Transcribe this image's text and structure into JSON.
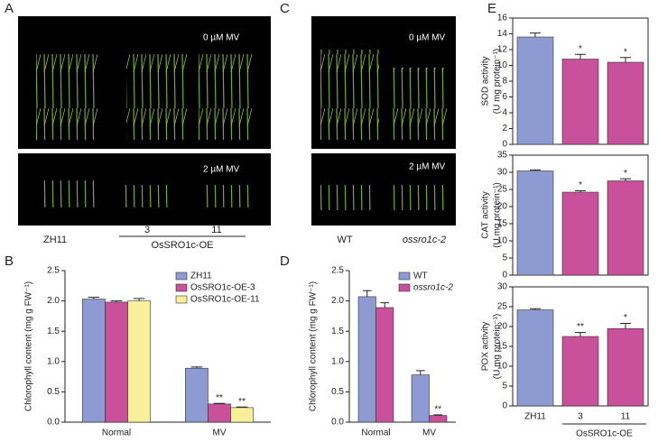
{
  "panel_labels": [
    "A",
    "B",
    "C",
    "D",
    "E"
  ],
  "photos": {
    "a_top_label": "0 µM MV",
    "a_bottom_label": "2 µM MV",
    "a_x_labels": [
      "ZH11",
      "3",
      "11"
    ],
    "a_group_label": "OsSRO1c-OE",
    "c_top_label": "0 µM MV",
    "c_bottom_label": "2 µM MV",
    "c_x_labels": [
      "WT",
      "ossro1c-2"
    ]
  },
  "chart_data": [
    {
      "type": "bar",
      "y_label": [
        "Chlorophyll content (mg g FW⁻¹)"
      ],
      "categories": [
        "Normal",
        "MV"
      ],
      "series": [
        {
          "name": "ZH11",
          "color": "#8e9bd3",
          "values": [
            2.03,
            0.89
          ],
          "errors": [
            0.03,
            0.02
          ],
          "significance": [
            null,
            null
          ]
        },
        {
          "name": "OsSRO1c-OE-3",
          "color": "#c9509b",
          "values": [
            1.98,
            0.3
          ],
          "errors": [
            0.02,
            0.01
          ],
          "significance": [
            null,
            "**"
          ]
        },
        {
          "name": "OsSRO1c-OE-11",
          "color": "#f7ef9a",
          "values": [
            2.0,
            0.24
          ],
          "errors": [
            0.04,
            0.01
          ],
          "significance": [
            null,
            "**"
          ]
        }
      ],
      "ylim": [
        0,
        2.5
      ],
      "yticks": [
        {
          "value": 0,
          "label": "0.0"
        },
        0.5,
        {
          "value": 1,
          "label": "1.0"
        },
        1.5,
        {
          "value": 2,
          "label": "2.0"
        },
        2.5
      ],
      "legend": "top-right"
    },
    {
      "type": "bar",
      "y_label": [
        "Chlorophyll content (mg g FW⁻¹)"
      ],
      "categories": [
        "Normal",
        "MV"
      ],
      "series": [
        {
          "name": "WT",
          "color": "#8e9bd3",
          "values": [
            2.07,
            0.78
          ],
          "errors": [
            0.1,
            0.07
          ],
          "significance": [
            null,
            null
          ]
        },
        {
          "name": "ossro1c-2",
          "color": "#c9509b",
          "values": [
            1.89,
            0.11
          ],
          "errors": [
            0.08,
            0.01
          ],
          "significance": [
            null,
            "**"
          ],
          "italic": true
        }
      ],
      "ylim": [
        0,
        2.5
      ],
      "yticks": [
        {
          "value": 0,
          "label": "0.0"
        },
        0.5,
        {
          "value": 1,
          "label": "1.0"
        },
        1.5,
        {
          "value": 2,
          "label": "2.0"
        },
        2.5
      ],
      "legend": "top-right"
    },
    {
      "type": "bar",
      "y_label": [
        "SOD activity",
        "(U mg protein⁻¹)"
      ],
      "values": [
        13.6,
        10.8,
        10.4
      ],
      "errors": [
        0.5,
        0.6,
        0.6
      ],
      "significance": [
        null,
        "*",
        "*"
      ],
      "colors": [
        "#8e9bd3",
        "#c9509b",
        "#c9509b"
      ],
      "ylim": [
        0,
        16
      ],
      "yticks": [
        0,
        2,
        4,
        6,
        8,
        10,
        12,
        14,
        16
      ],
      "frame": true
    },
    {
      "type": "bar",
      "y_label": [
        "CAT activity",
        "(U mg protein⁻¹)"
      ],
      "values": [
        30.4,
        24.2,
        27.5
      ],
      "errors": [
        0.3,
        0.4,
        0.6
      ],
      "significance": [
        null,
        "*",
        "*"
      ],
      "colors": [
        "#8e9bd3",
        "#c9509b",
        "#c9509b"
      ],
      "ylim": [
        0,
        35
      ],
      "yticks": [
        0,
        5,
        10,
        15,
        20,
        25,
        30,
        35
      ],
      "frame": true
    },
    {
      "type": "bar",
      "y_label": [
        "POX activity",
        "(U mg protein⁻¹)"
      ],
      "categories": [
        "ZH11",
        "3",
        "11"
      ],
      "x_group_label": "OsSRO1c-OE",
      "values": [
        24.2,
        17.5,
        19.5
      ],
      "errors": [
        0.3,
        1.0,
        1.3
      ],
      "significance": [
        null,
        "**",
        "*"
      ],
      "colors": [
        "#8e9bd3",
        "#c9509b",
        "#c9509b"
      ],
      "ylim": [
        0,
        30
      ],
      "yticks": [
        0,
        5,
        10,
        15,
        20,
        25,
        30
      ],
      "frame": true
    }
  ]
}
